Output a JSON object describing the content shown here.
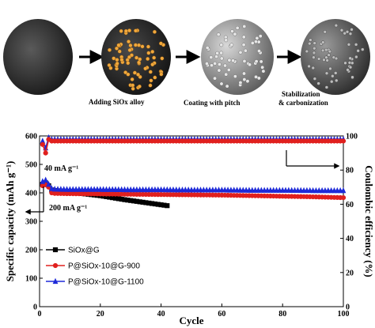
{
  "schematic": {
    "steps": [
      {
        "label": ""
      },
      {
        "label": "Adding SiOx alloy"
      },
      {
        "label": "Coating with pitch"
      },
      {
        "label": "Stabilization\n& carbonization"
      }
    ],
    "colors": {
      "core": "#2b2b2b",
      "alloy_dots": "#f0a83c",
      "pitch": "#9a9a9a",
      "final": "#4a4a4a"
    }
  },
  "chart_data": {
    "type": "scatter",
    "title": "",
    "xlabel": "Cycle",
    "ylabel_left": "Specific capacity (mAh g⁻¹)",
    "ylabel_right": "Coulombic efficiency (%)",
    "xlim": [
      0,
      100
    ],
    "ylim_left": [
      0,
      600
    ],
    "ylim_right": [
      0,
      100
    ],
    "xticks": [
      "0",
      "20",
      "40",
      "60",
      "80",
      "100"
    ],
    "yticks_left": [
      "0",
      "100",
      "200",
      "300",
      "400",
      "500",
      "600"
    ],
    "yticks_right": [
      "0",
      "20",
      "40",
      "60",
      "80",
      "100"
    ],
    "annotations": [
      "40 mA g⁻¹",
      "200 mA g⁻¹"
    ],
    "legend_position": "bottom-left",
    "series": [
      {
        "name": "SiOx@G",
        "color": "#000000",
        "marker": "square",
        "axis": "left",
        "x": [
          1,
          2,
          3,
          4,
          5,
          8,
          12,
          16,
          20,
          24,
          28,
          32,
          36,
          40,
          42
        ],
        "y": [
          430,
          435,
          425,
          410,
          408,
          405,
          400,
          395,
          390,
          383,
          376,
          370,
          364,
          358,
          355
        ]
      },
      {
        "name": "P@SiOx-10@G-900",
        "color": "#e0201e",
        "marker": "circle",
        "axis": "left",
        "x": [
          1,
          2,
          3,
          4,
          5,
          10,
          20,
          30,
          40,
          50,
          60,
          70,
          80,
          90,
          100
        ],
        "y": [
          425,
          428,
          420,
          400,
          398,
          397,
          396,
          395,
          394,
          393,
          392,
          390,
          388,
          386,
          383
        ]
      },
      {
        "name": "P@SiOx-10@G-1100",
        "color": "#1e2ad8",
        "marker": "triangle",
        "axis": "left",
        "x": [
          1,
          2,
          3,
          4,
          5,
          10,
          20,
          30,
          40,
          50,
          60,
          70,
          80,
          90,
          100
        ],
        "y": [
          440,
          445,
          430,
          415,
          413,
          412,
          412,
          411,
          411,
          410,
          410,
          409,
          409,
          408,
          408
        ]
      },
      {
        "name": "",
        "color": "#1e2ad8",
        "marker": "triangle",
        "axis": "right",
        "x": [
          1,
          2,
          3,
          4,
          5,
          10,
          20,
          30,
          40,
          50,
          60,
          70,
          80,
          90,
          100
        ],
        "y": [
          97,
          93,
          99,
          98,
          98,
          98,
          98,
          98,
          98,
          98,
          98,
          98,
          98,
          98,
          98
        ]
      },
      {
        "name": "",
        "color": "#e0201e",
        "marker": "circle",
        "axis": "right",
        "x": [
          1,
          2,
          3,
          4,
          5,
          10,
          20,
          30,
          40,
          50,
          60,
          70,
          80,
          90,
          100
        ],
        "y": [
          95,
          90,
          98,
          97,
          97,
          97,
          97,
          97,
          97,
          97,
          97,
          97,
          97,
          97,
          97
        ]
      }
    ]
  }
}
